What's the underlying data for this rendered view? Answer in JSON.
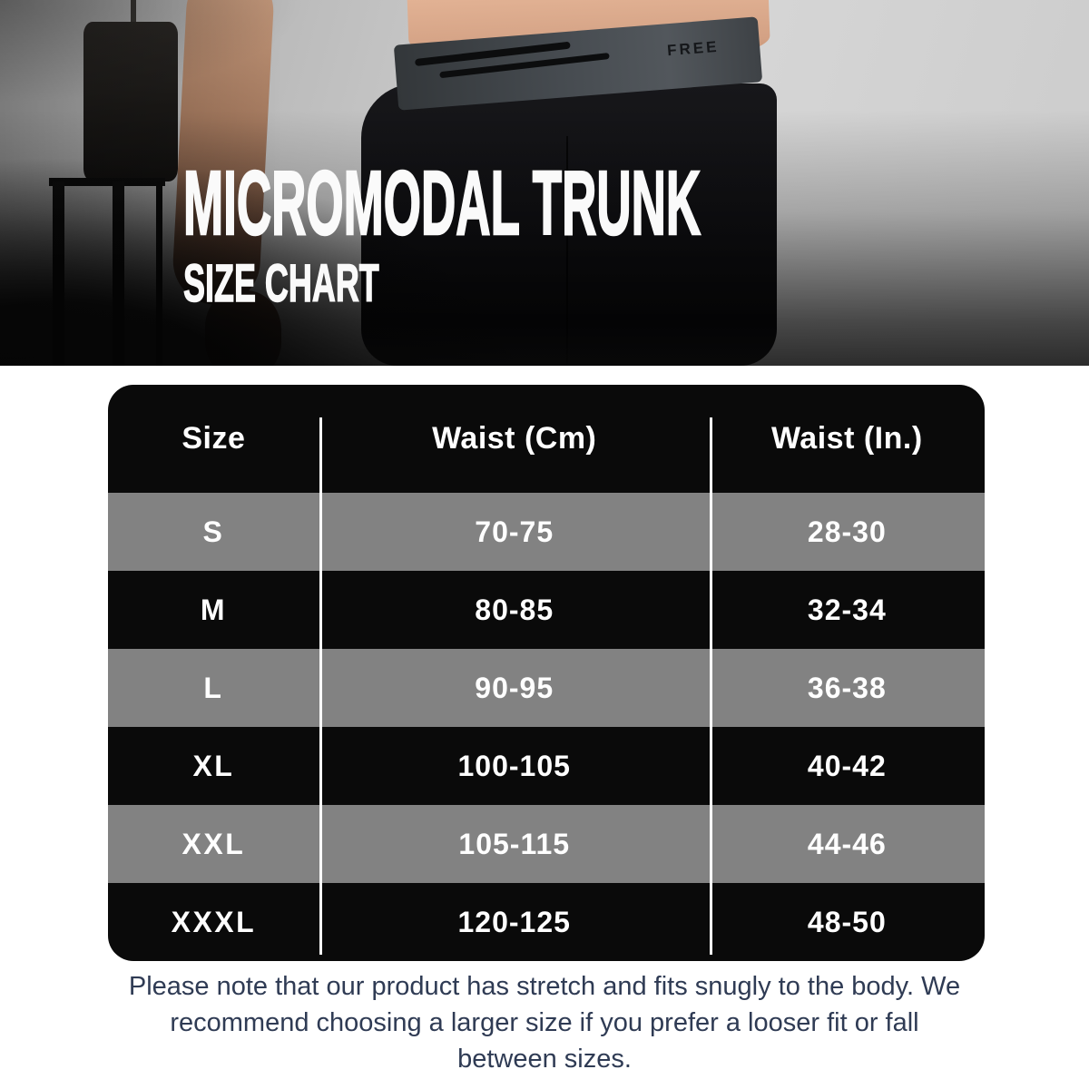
{
  "hero": {
    "title_line1": "MICROMODAL TRUNK",
    "title_line2": "SIZE CHART",
    "waistband_text": "FREE"
  },
  "size_table": {
    "headers": [
      "Size",
      "Waist (Cm)",
      "Waist (In.)"
    ],
    "rows": [
      {
        "size": "S",
        "waist_cm": "70-75",
        "waist_in": "28-30"
      },
      {
        "size": "M",
        "waist_cm": "80-85",
        "waist_in": "32-34"
      },
      {
        "size": "L",
        "waist_cm": "90-95",
        "waist_in": "36-38"
      },
      {
        "size": "XL",
        "waist_cm": "100-105",
        "waist_in": "40-42"
      },
      {
        "size": "XXL",
        "waist_cm": "105-115",
        "waist_in": "44-46"
      },
      {
        "size": "XXXL",
        "waist_cm": "120-125",
        "waist_in": "48-50"
      }
    ]
  },
  "note": {
    "text": "Please note that our product has stretch and fits snugly to the body. We recommend choosing a larger size if you prefer a looser fit or fall between sizes."
  },
  "colors": {
    "table_background": "#0a0a0a",
    "row_gray": "#828282",
    "row_black": "#0a0a0a",
    "divider_white": "#ffffff",
    "title_white": "#fafafa",
    "note_navy": "#2f3b54",
    "page_background": "#ffffff"
  },
  "chart_data": {
    "type": "table",
    "title": "MICROMODAL TRUNK SIZE CHART",
    "columns": [
      "Size",
      "Waist (Cm)",
      "Waist (In.)"
    ],
    "rows": [
      [
        "S",
        "70-75",
        "28-30"
      ],
      [
        "M",
        "80-85",
        "32-34"
      ],
      [
        "L",
        "90-95",
        "36-38"
      ],
      [
        "XL",
        "100-105",
        "40-42"
      ],
      [
        "XXL",
        "105-115",
        "44-46"
      ],
      [
        "XXXL",
        "120-125",
        "48-50"
      ]
    ],
    "footnote": "Please note that our product has stretch and fits snugly to the body. We recommend choosing a larger size if you prefer a looser fit or fall between sizes."
  }
}
